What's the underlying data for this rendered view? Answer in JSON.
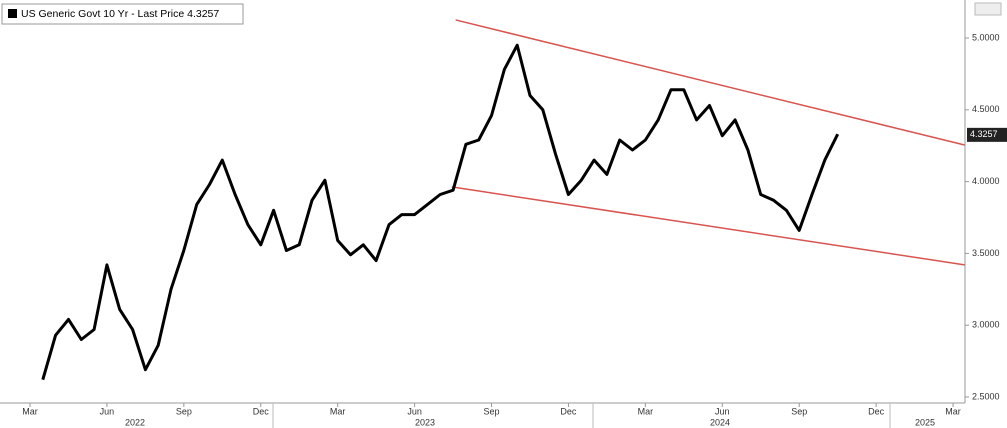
{
  "chart_data": {
    "type": "line",
    "series": [
      {
        "name": "US Generic Govt 10 Yr - Last Price",
        "color": "#000000",
        "values": [
          null,
          2.62,
          2.93,
          3.04,
          2.9,
          2.97,
          3.42,
          3.11,
          2.97,
          2.69,
          2.86,
          3.25,
          3.52,
          3.84,
          3.98,
          4.15,
          3.91,
          3.7,
          3.56,
          3.8,
          3.52,
          3.56,
          3.87,
          4.01,
          3.59,
          3.49,
          3.56,
          3.45,
          3.7,
          3.77,
          3.77,
          3.84,
          3.91,
          3.94,
          4.26,
          4.29,
          4.46,
          4.78,
          4.95,
          4.6,
          4.5,
          4.19,
          3.91,
          4.01,
          4.15,
          4.05,
          4.29,
          4.22,
          4.29,
          4.43,
          4.64,
          4.64,
          4.43,
          4.53,
          4.32,
          4.43,
          4.22,
          3.91,
          3.87,
          3.8,
          3.66,
          3.91,
          4.15,
          4.33,
          null,
          null,
          null,
          null,
          null,
          null,
          null,
          null,
          null
        ]
      }
    ],
    "last_value": 4.3257,
    "categories": [
      "Mar",
      null,
      null,
      null,
      null,
      null,
      "Jun",
      null,
      null,
      null,
      null,
      null,
      "Sep",
      null,
      null,
      null,
      null,
      null,
      "Dec",
      null,
      null,
      null,
      null,
      null,
      "Mar",
      null,
      null,
      null,
      null,
      null,
      "Jun",
      null,
      null,
      null,
      null,
      null,
      "Sep",
      null,
      null,
      null,
      null,
      null,
      "Dec",
      null,
      null,
      null,
      null,
      null,
      "Mar",
      null,
      null,
      null,
      null,
      null,
      "Jun",
      null,
      null,
      null,
      null,
      null,
      "Sep",
      null,
      null,
      null,
      null,
      null,
      "Dec",
      null,
      null,
      null,
      null,
      null,
      "Mar"
    ],
    "years": [
      "2022",
      "2023",
      "2024",
      "2025"
    ],
    "ylim": [
      2.458,
      5.265
    ],
    "yticks": [
      {
        "value": 2.5,
        "label": "2.5000"
      },
      {
        "value": 3,
        "label": "3.0000"
      },
      {
        "value": 3.5,
        "label": "3.5000"
      },
      {
        "value": 4,
        "label": "4.0000"
      },
      {
        "value": 4.5,
        "label": "4.5000"
      },
      {
        "value": 5,
        "label": "5.0000"
      }
    ],
    "trendlines": [
      {
        "color": "#d9534f",
        "x": [
          33.2,
          72.9
        ],
        "y": [
          5.126,
          4.255
        ]
      },
      {
        "color": "#d9534f",
        "x": [
          32.9,
          72.9
        ],
        "y": [
          3.963,
          3.42
        ]
      }
    ]
  }
}
